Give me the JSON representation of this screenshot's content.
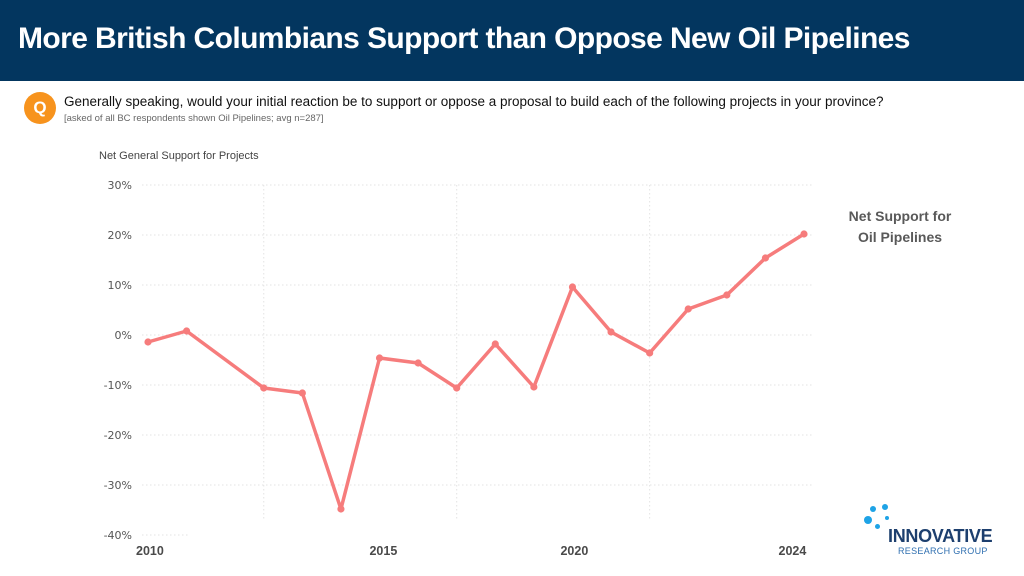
{
  "header": {
    "title": "More British Columbians Support than Oppose New Oil Pipelines"
  },
  "question": {
    "badge": "Q",
    "text": "Generally speaking, would your initial reaction be to support or oppose a proposal to build each of the following projects in your province?",
    "note": "[asked of all BC respondents shown Oil Pipelines; avg n=287]"
  },
  "logo": {
    "name": "INNOVATIVE",
    "sub": "RESEARCH GROUP"
  },
  "colors": {
    "banner": "#03365f",
    "badge": "#f7931d",
    "line": "#f67c7c"
  },
  "chart_data": {
    "type": "line",
    "title": "Net General Support for Projects",
    "xlabel": "",
    "ylabel": "",
    "ylim": [
      -40,
      30
    ],
    "yticks": [
      30,
      20,
      10,
      0,
      -10,
      -20,
      -30,
      -40
    ],
    "ytick_labels": [
      "30%",
      "20%",
      "10%",
      "0%",
      "-10%",
      "-20%",
      "-30%",
      "-40%"
    ],
    "x_slots": 18,
    "xtick_labels": [
      {
        "label": "2010",
        "slot": 0.05
      },
      {
        "label": "2015",
        "slot": 6.1
      },
      {
        "label": "2020",
        "slot": 11.05
      },
      {
        "label": "2024",
        "slot": 16.7
      }
    ],
    "vertical_grid_slots": [
      3,
      8,
      13
    ],
    "grid": true,
    "series": [
      {
        "name": "Net Support for Oil Pipelines",
        "label_lines": [
          "Net Support for",
          "Oil Pipelines"
        ],
        "points": [
          {
            "slot": 0,
            "value": -1.4
          },
          {
            "slot": 1,
            "value": 0.8
          },
          {
            "slot": 3,
            "value": -10.6
          },
          {
            "slot": 4,
            "value": -11.6
          },
          {
            "slot": 5,
            "value": -34.8
          },
          {
            "slot": 6,
            "value": -4.6
          },
          {
            "slot": 7,
            "value": -5.6
          },
          {
            "slot": 8,
            "value": -10.6
          },
          {
            "slot": 9,
            "value": -1.8
          },
          {
            "slot": 10,
            "value": -10.4
          },
          {
            "slot": 11,
            "value": 9.6
          },
          {
            "slot": 12,
            "value": 0.6
          },
          {
            "slot": 13,
            "value": -3.6
          },
          {
            "slot": 14,
            "value": 5.2
          },
          {
            "slot": 15,
            "value": 8.0
          },
          {
            "slot": 16,
            "value": 15.4
          },
          {
            "slot": 17,
            "value": 20.2
          }
        ]
      }
    ]
  }
}
